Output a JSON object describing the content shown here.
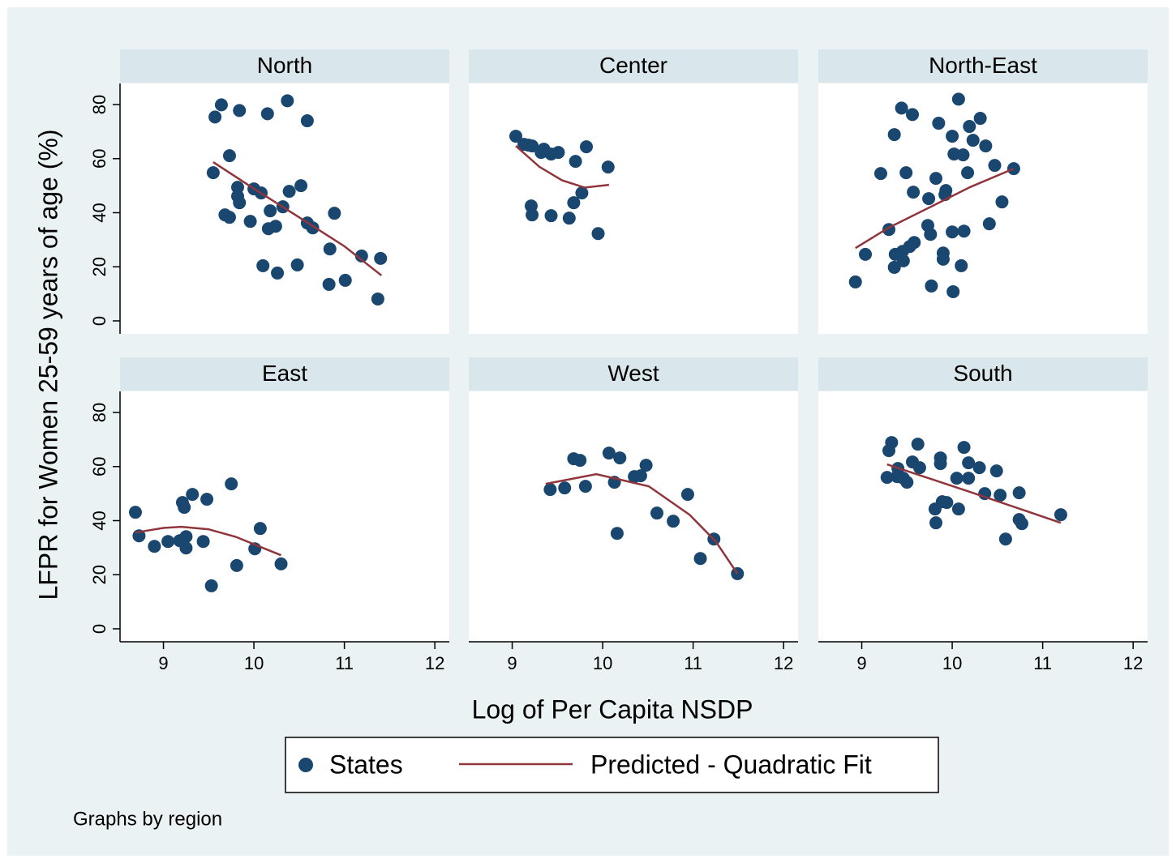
{
  "figure": {
    "ylabel": "LFPR for Women 25-59 years of age (%)",
    "xlabel": "Log of Per Capita NSDP",
    "note": "Graphs by region",
    "legend": [
      {
        "name": "States",
        "color": "#1a476f",
        "style": "marker"
      },
      {
        "name": "Predicted - Quadratic Fit",
        "color": "#90353b",
        "style": "line"
      }
    ]
  },
  "chart_data": [
    {
      "type": "scatter",
      "title": "North",
      "xlim": [
        8.52,
        12.16
      ],
      "ylim": [
        -4.8,
        87.8
      ],
      "yticks": [
        0,
        20,
        40,
        60,
        80
      ],
      "series": [
        {
          "color": "#1a476f",
          "style": "marker",
          "x": [
            9.55,
            9.57,
            9.64,
            9.84,
            9.73,
            9.68,
            9.73,
            9.82,
            9.82,
            9.84,
            9.96,
            10.0,
            10.08,
            10.15,
            10.18,
            10.16,
            10.24,
            10.1,
            10.26,
            10.32,
            10.39,
            10.37,
            10.48,
            10.52,
            10.59,
            10.59,
            10.65,
            10.89,
            10.84,
            10.83,
            11.01,
            11.19,
            11.4,
            11.37
          ],
          "values": [
            54.8,
            75.4,
            79.9,
            77.8,
            61.1,
            39.2,
            38.3,
            49.4,
            46.1,
            43.7,
            36.8,
            48.8,
            47.3,
            76.6,
            40.7,
            34.1,
            35.0,
            20.4,
            17.7,
            42.2,
            47.9,
            81.4,
            20.7,
            50.0,
            74.0,
            36.2,
            34.4,
            39.8,
            26.6,
            13.5,
            15.0,
            24.0,
            23.1,
            8.1
          ]
        },
        {
          "color": "#90353b",
          "style": "line",
          "x": [
            9.55,
            10.0,
            10.5,
            11.0,
            11.41
          ],
          "values": [
            58.7,
            48.9,
            38.3,
            27.6,
            16.8
          ]
        }
      ]
    },
    {
      "type": "scatter",
      "title": "Center",
      "xlim": [
        8.52,
        12.16
      ],
      "ylim": [
        -4.8,
        87.8
      ],
      "series": [
        {
          "color": "#1a476f",
          "style": "marker",
          "x": [
            9.04,
            9.13,
            9.18,
            9.22,
            9.32,
            9.35,
            9.43,
            9.51,
            9.82,
            9.7,
            10.06,
            9.21,
            9.22,
            9.43,
            9.63,
            9.68,
            9.77,
            9.95
          ],
          "values": [
            68.3,
            65.3,
            65.0,
            64.7,
            62.3,
            63.5,
            61.7,
            62.3,
            64.4,
            59.0,
            56.9,
            42.5,
            39.2,
            38.9,
            38.0,
            43.7,
            47.3,
            32.3
          ]
        },
        {
          "color": "#90353b",
          "style": "line",
          "x": [
            9.04,
            9.3,
            9.55,
            9.8,
            10.07
          ],
          "values": [
            64.7,
            57.0,
            52.0,
            49.3,
            50.3
          ]
        }
      ]
    },
    {
      "type": "scatter",
      "title": "North-East",
      "xlim": [
        8.52,
        12.16
      ],
      "ylim": [
        -4.8,
        87.8
      ],
      "series": [
        {
          "color": "#1a476f",
          "style": "marker",
          "x": [
            8.93,
            9.04,
            9.21,
            9.3,
            9.36,
            9.44,
            9.49,
            9.56,
            9.57,
            9.37,
            9.36,
            9.46,
            9.45,
            9.53,
            9.58,
            9.73,
            9.74,
            9.76,
            9.82,
            9.85,
            9.77,
            9.9,
            9.9,
            9.92,
            9.93,
            10.0,
            10.02,
            10.0,
            10.01,
            10.07,
            10.12,
            10.13,
            10.1,
            10.19,
            10.23,
            10.17,
            10.31,
            10.37,
            10.41,
            10.47,
            10.55,
            10.68
          ],
          "values": [
            14.4,
            24.6,
            54.5,
            33.8,
            68.9,
            78.7,
            54.8,
            76.3,
            47.6,
            24.6,
            19.8,
            22.2,
            25.7,
            27.5,
            29.0,
            35.3,
            45.2,
            32.0,
            52.7,
            73.1,
            12.9,
            25.1,
            22.8,
            46.7,
            48.2,
            68.3,
            61.7,
            32.9,
            10.8,
            82.0,
            61.4,
            33.2,
            20.4,
            71.9,
            66.8,
            54.8,
            74.9,
            64.7,
            35.9,
            57.5,
            44.0,
            56.3
          ]
        },
        {
          "color": "#90353b",
          "style": "line",
          "x": [
            8.93,
            9.3,
            9.8,
            10.2,
            10.68
          ],
          "values": [
            26.9,
            34.5,
            42.8,
            49.5,
            56.3
          ]
        }
      ]
    },
    {
      "type": "scatter",
      "title": "East",
      "xlim": [
        8.52,
        12.16
      ],
      "ylim": [
        -4.8,
        87.8
      ],
      "yticks": [
        0,
        20,
        40,
        60,
        80
      ],
      "xticks": [
        9,
        10,
        11,
        12
      ],
      "series": [
        {
          "color": "#1a476f",
          "style": "marker",
          "x": [
            8.69,
            8.73,
            8.9,
            9.05,
            9.18,
            9.21,
            9.23,
            9.25,
            9.25,
            9.32,
            9.44,
            9.48,
            9.53,
            9.75,
            9.81,
            10.01,
            10.07,
            10.3
          ],
          "values": [
            43.1,
            34.4,
            30.5,
            32.3,
            32.6,
            46.7,
            44.9,
            34.1,
            29.9,
            49.7,
            32.3,
            47.9,
            15.9,
            53.6,
            23.4,
            29.6,
            37.1,
            24.0
          ]
        },
        {
          "color": "#90353b",
          "style": "line",
          "x": [
            8.69,
            9.0,
            9.2,
            9.5,
            9.8,
            10.1,
            10.3
          ],
          "values": [
            35.6,
            37.3,
            37.7,
            36.8,
            34.0,
            29.9,
            27.2
          ]
        }
      ]
    },
    {
      "type": "scatter",
      "title": "West",
      "xlim": [
        8.52,
        12.16
      ],
      "ylim": [
        -4.8,
        87.8
      ],
      "xticks": [
        9,
        10,
        11,
        12
      ],
      "series": [
        {
          "color": "#1a476f",
          "style": "marker",
          "x": [
            9.42,
            9.58,
            9.68,
            9.75,
            9.81,
            10.07,
            10.13,
            10.19,
            10.16,
            10.35,
            10.42,
            10.48,
            10.6,
            10.78,
            10.94,
            11.08,
            11.23,
            11.49
          ],
          "values": [
            51.5,
            52.1,
            62.9,
            62.3,
            52.7,
            65.0,
            54.2,
            63.2,
            35.3,
            56.3,
            56.6,
            60.5,
            42.8,
            39.8,
            49.7,
            26.0,
            33.2,
            20.4
          ]
        },
        {
          "color": "#90353b",
          "style": "line",
          "x": [
            9.37,
            9.93,
            10.51,
            10.96,
            11.25,
            11.49
          ],
          "values": [
            53.6,
            57.2,
            52.7,
            42.2,
            32.3,
            20.4
          ]
        }
      ]
    },
    {
      "type": "scatter",
      "title": "South",
      "xlim": [
        8.52,
        12.16
      ],
      "ylim": [
        -4.8,
        87.8
      ],
      "xticks": [
        9,
        10,
        11,
        12
      ],
      "series": [
        {
          "color": "#1a476f",
          "style": "marker",
          "x": [
            9.3,
            9.33,
            9.28,
            9.4,
            9.39,
            9.46,
            9.5,
            9.56,
            9.62,
            9.64,
            9.81,
            9.82,
            9.87,
            9.87,
            9.89,
            9.94,
            10.05,
            10.07,
            10.13,
            10.18,
            10.18,
            10.3,
            10.36,
            10.49,
            10.53,
            10.59,
            10.74,
            10.74,
            10.77,
            11.2
          ],
          "values": [
            65.9,
            68.9,
            56.0,
            59.3,
            56.3,
            55.7,
            54.2,
            61.7,
            68.3,
            59.6,
            44.3,
            39.2,
            63.2,
            61.1,
            47.0,
            46.7,
            55.7,
            44.3,
            67.1,
            61.4,
            55.7,
            59.6,
            50.0,
            58.4,
            49.4,
            33.2,
            50.3,
            40.4,
            38.9,
            42.2
          ]
        },
        {
          "color": "#90353b",
          "style": "line",
          "x": [
            9.28,
            10.2,
            11.2
          ],
          "values": [
            60.8,
            50.6,
            39.2
          ]
        }
      ]
    }
  ]
}
